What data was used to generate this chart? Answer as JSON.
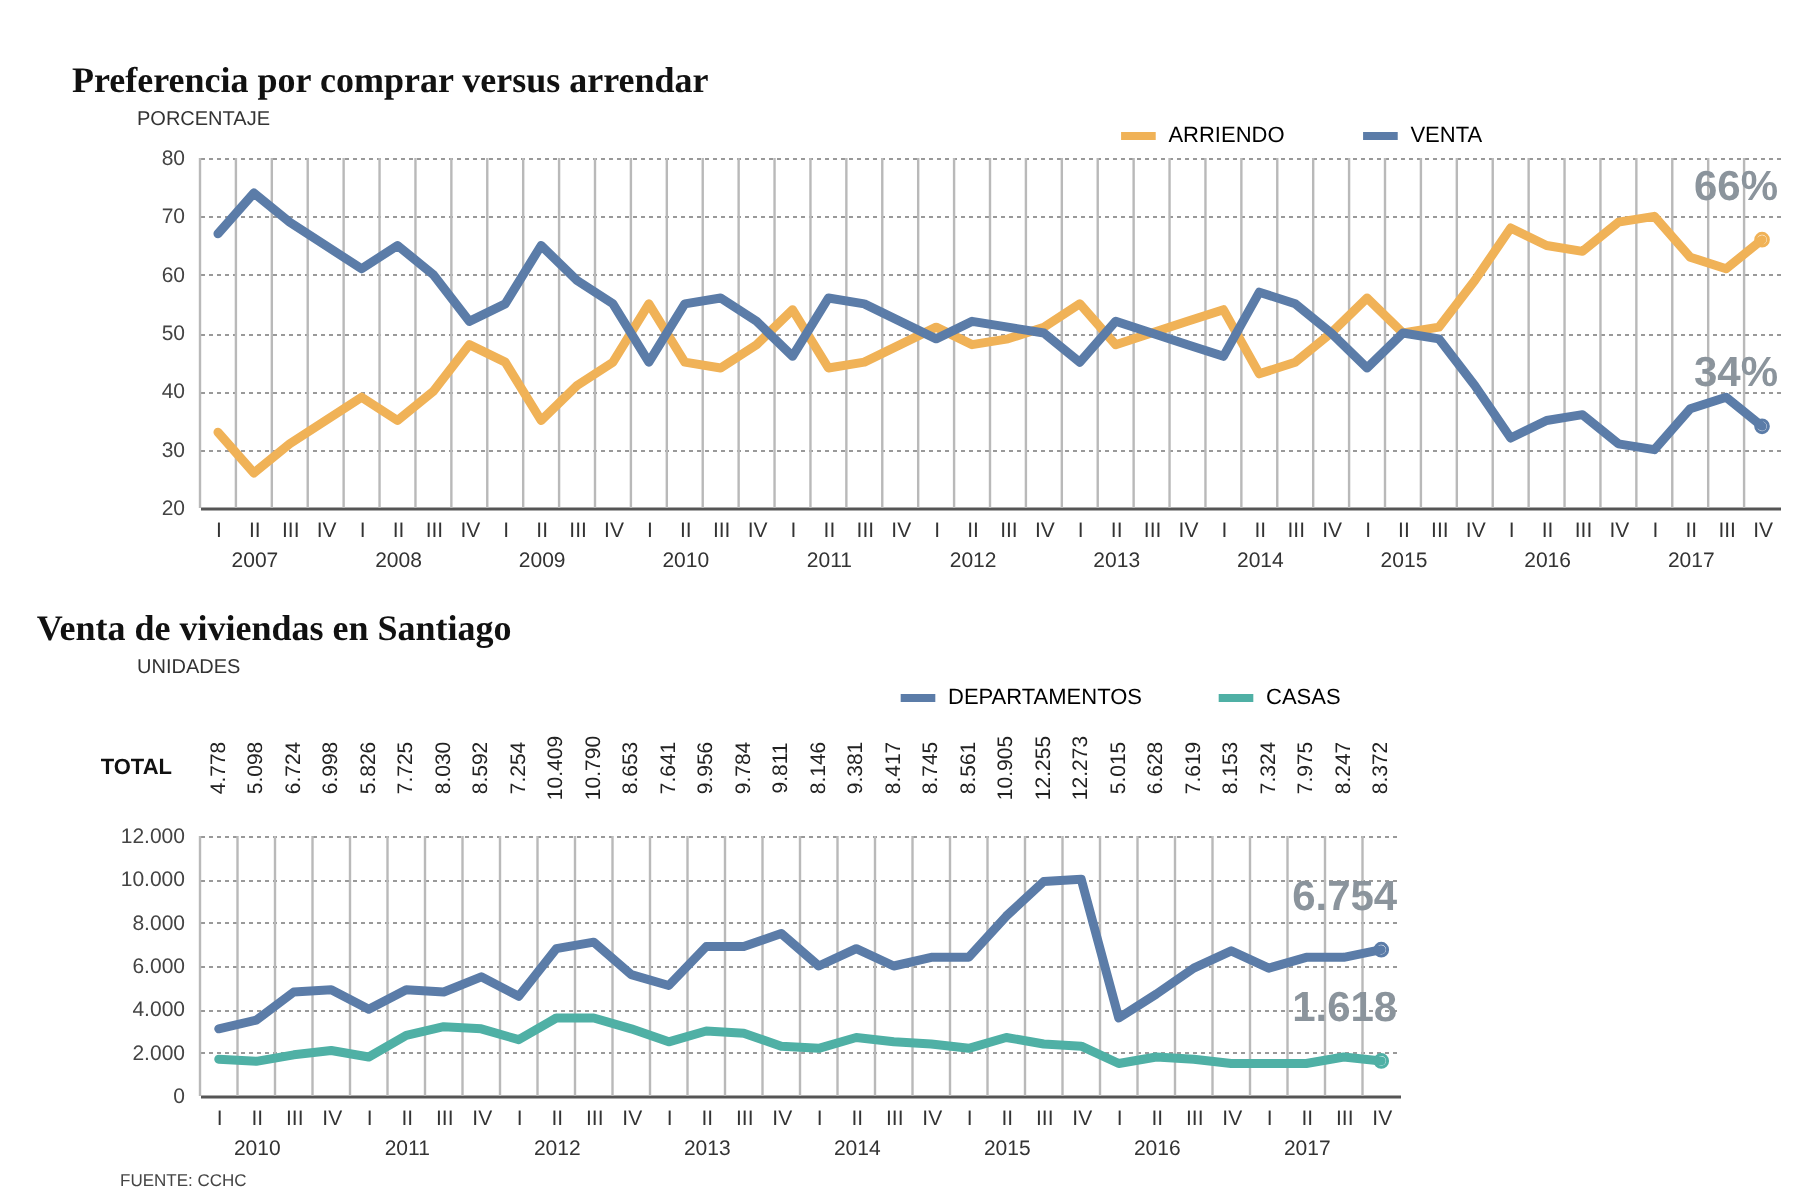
{
  "chart_data": [
    {
      "type": "line",
      "title": "Preferencia por comprar versus arrendar",
      "ylabel": "PORCENTAJE",
      "categories": [
        "I",
        "II\n2007",
        "III",
        "IV",
        "I",
        "II\n2008",
        "III",
        "IV",
        "I",
        "II\n2009",
        "III",
        "IV",
        "I",
        "II\n2010",
        "III",
        "IV",
        "I",
        "II\n2011",
        "III",
        "IV",
        "I",
        "II\n2012",
        "III",
        "IV",
        "I",
        "II\n2013",
        "III",
        "IV",
        "I",
        "II\n2014",
        "III",
        "IV",
        "I",
        "II\n2015",
        "III",
        "IV",
        "I",
        "II\n2016",
        "III",
        "IV",
        "I",
        "II\n2017",
        "III",
        "IV"
      ],
      "series": [
        {
          "name": "ARRIENDO",
          "color": "#f0b257",
          "values": [
            33,
            26,
            31,
            35,
            39,
            35,
            40,
            48,
            45,
            35,
            41,
            45,
            55,
            45,
            44,
            48,
            54,
            44,
            45,
            48,
            51,
            48,
            49,
            51,
            55,
            48,
            50,
            52,
            54,
            43,
            45,
            50,
            56,
            50,
            51,
            59,
            68,
            65,
            64,
            69,
            70,
            63,
            61,
            66
          ],
          "value_labels": [
            null,
            null,
            null,
            null,
            null,
            null,
            null,
            null,
            null,
            null,
            null,
            null,
            null,
            null,
            null,
            null,
            null,
            null,
            null,
            null,
            null,
            null,
            null,
            null,
            null,
            null,
            null,
            null,
            null,
            null,
            null,
            null,
            null,
            null,
            null,
            null,
            null,
            null,
            null,
            null,
            null,
            null,
            null,
            "66%"
          ]
        },
        {
          "name": "VENTA",
          "color": "#5b7ca8",
          "values": [
            67,
            74,
            69,
            65,
            61,
            65,
            60,
            52,
            55,
            65,
            59,
            55,
            45,
            55,
            56,
            52,
            46,
            56,
            55,
            52,
            49,
            52,
            51,
            50,
            45,
            52,
            50,
            48,
            46,
            57,
            55,
            50,
            44,
            50,
            49,
            41,
            32,
            35,
            36,
            31,
            30,
            37,
            39,
            34
          ],
          "value_labels": [
            null,
            null,
            null,
            null,
            null,
            null,
            null,
            null,
            null,
            null,
            null,
            null,
            null,
            null,
            null,
            null,
            null,
            null,
            null,
            null,
            null,
            null,
            null,
            null,
            null,
            null,
            null,
            null,
            null,
            null,
            null,
            null,
            null,
            null,
            null,
            null,
            null,
            null,
            null,
            null,
            null,
            null,
            null,
            "34%"
          ]
        }
      ],
      "ylim": [
        20,
        80
      ],
      "yticks": [
        20,
        30,
        40,
        50,
        60,
        70,
        80
      ],
      "grid": true,
      "legend": "top"
    },
    {
      "type": "line",
      "title": "Venta de viviendas en Santiago",
      "ylabel": "UNIDADES",
      "categories": [
        "I",
        "II\n2010",
        "III",
        "IV",
        "I",
        "II\n2011",
        "III",
        "IV",
        "I",
        "II\n2012",
        "III",
        "IV",
        "I",
        "II\n2013",
        "III",
        "IV",
        "I",
        "II\n2014",
        "III",
        "IV",
        "I",
        "II\n2015",
        "III",
        "IV",
        "I",
        "II\n2016",
        "III",
        "IV",
        "I",
        "II\n2017",
        "III",
        "IV"
      ],
      "series": [
        {
          "name": "DEPARTAMENTOS",
          "color": "#5b7ca8",
          "values": [
            3100,
            3500,
            4800,
            4900,
            4000,
            4900,
            4800,
            5500,
            4600,
            6800,
            7100,
            5600,
            5100,
            6900,
            6900,
            7500,
            6000,
            6800,
            6000,
            6400,
            6400,
            8300,
            9900,
            10000,
            3600,
            4700,
            5900,
            6700,
            5900,
            6400,
            6400,
            6754
          ],
          "value_labels": [
            null,
            null,
            null,
            null,
            null,
            null,
            null,
            null,
            null,
            null,
            null,
            null,
            null,
            null,
            null,
            null,
            null,
            null,
            null,
            null,
            null,
            null,
            null,
            null,
            null,
            null,
            null,
            null,
            null,
            null,
            null,
            "6.754"
          ]
        },
        {
          "name": "CASAS",
          "color": "#4fb0a5",
          "values": [
            1700,
            1600,
            1900,
            2100,
            1800,
            2800,
            3200,
            3100,
            2600,
            3600,
            3600,
            3100,
            2500,
            3000,
            2900,
            2300,
            2200,
            2700,
            2500,
            2400,
            2200,
            2700,
            2400,
            2300,
            1500,
            1800,
            1700,
            1500,
            1500,
            1500,
            1800,
            1618
          ],
          "value_labels": [
            null,
            null,
            null,
            null,
            null,
            null,
            null,
            null,
            null,
            null,
            null,
            null,
            null,
            null,
            null,
            null,
            null,
            null,
            null,
            null,
            null,
            null,
            null,
            null,
            null,
            null,
            null,
            null,
            null,
            null,
            null,
            "1.618"
          ]
        }
      ],
      "totals": [
        "4.778",
        "5.098",
        "6.724",
        "6.998",
        "5.826",
        "7.725",
        "8.030",
        "8.592",
        "7.254",
        "10.409",
        "10.790",
        "8.653",
        "7.641",
        "9.956",
        "9.784",
        "9.811",
        "8.146",
        "9.381",
        "8.417",
        "8.745",
        "8.561",
        "10.905",
        "12.255",
        "12.273",
        "5.015",
        "6.628",
        "7.619",
        "8.153",
        "7.324",
        "7.975",
        "8.247",
        "8.372"
      ],
      "ylim": [
        0,
        12000
      ],
      "yticks": [
        {
          "value": 0,
          "label": "0"
        },
        {
          "value": 2000,
          "label": "2.000"
        },
        {
          "value": 4000,
          "label": "4.000"
        },
        {
          "value": 6000,
          "label": "6.000"
        },
        {
          "value": 8000,
          "label": "8.000"
        },
        {
          "value": 10000,
          "label": "10.000"
        },
        {
          "value": 12000,
          "label": "12.000"
        }
      ],
      "grid": true,
      "legend": "top",
      "annotations": [
        "TOTAL",
        "FUENTE: CCHC"
      ]
    }
  ]
}
